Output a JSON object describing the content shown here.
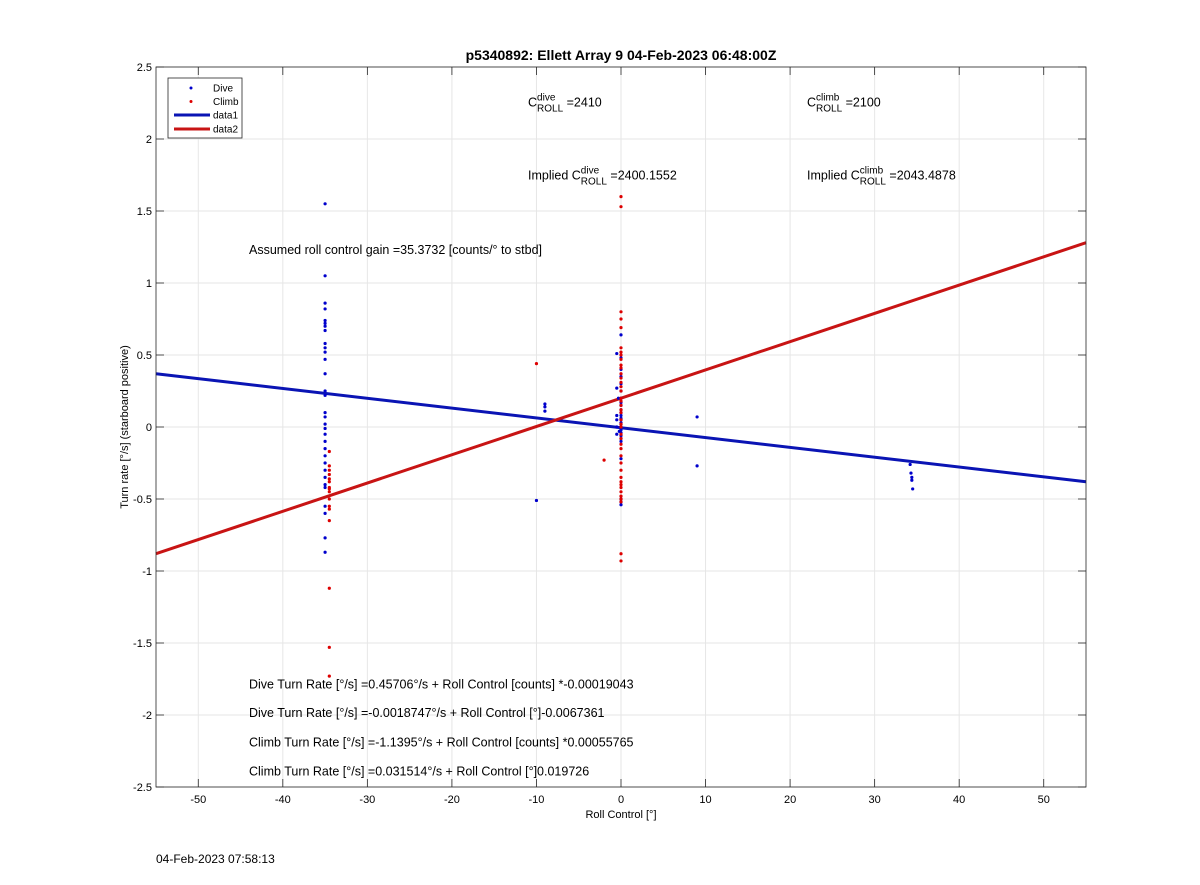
{
  "footer": {
    "timestamp": "04-Feb-2023 07:58:13"
  },
  "chart_data": {
    "type": "scatter",
    "title": "p5340892: Ellett Array 9 04-Feb-2023 06:48:00Z",
    "xlabel": "Roll Control [°]",
    "ylabel": "Turn rate [°/s] (starboard positive)",
    "xlim": [
      -55,
      55
    ],
    "ylim": [
      -2.5,
      2.5
    ],
    "xticks": [
      -50,
      -40,
      -30,
      -20,
      -10,
      0,
      10,
      20,
      30,
      40,
      50
    ],
    "yticks": [
      -2.5,
      -2,
      -1.5,
      -1,
      -0.5,
      0,
      0.5,
      1,
      1.5,
      2,
      2.5
    ],
    "grid": true,
    "legend_position": "top-left",
    "colors": {
      "dive": "#0000cc",
      "climb": "#dd0000",
      "data1": "#0a14b4",
      "data2": "#c81414"
    },
    "series": [
      {
        "name": "Dive",
        "kind": "points",
        "x": [
          -35,
          -35,
          -35,
          -35,
          -35,
          -35,
          -35,
          -35,
          -35,
          -35,
          -35,
          -35,
          -35,
          -35,
          -35,
          -35,
          -35,
          -35,
          -35,
          -35,
          -35,
          -35,
          -35,
          -35,
          -35,
          -35,
          -35,
          -35,
          -35,
          -35,
          -35,
          -35,
          -9,
          -9,
          -9,
          -10,
          -0.5,
          -0.5,
          -0.5,
          -0.5,
          -0.5,
          -0.5,
          -0.3,
          -0.2,
          0,
          0,
          0,
          0,
          0,
          0,
          0,
          0,
          0,
          0,
          0,
          0,
          0,
          0,
          0,
          0,
          0,
          0,
          0,
          0,
          0,
          0,
          0,
          0,
          0,
          0,
          9,
          9,
          34.2,
          34.3,
          34.4,
          34.4,
          34.5
        ],
        "y": [
          1.55,
          1.05,
          0.86,
          0.82,
          0.74,
          0.72,
          0.7,
          0.67,
          0.58,
          0.55,
          0.52,
          0.47,
          0.37,
          0.25,
          0.22,
          0.1,
          0.07,
          0.02,
          -0.01,
          -0.05,
          -0.1,
          -0.15,
          -0.2,
          -0.25,
          -0.3,
          -0.35,
          -0.4,
          -0.42,
          -0.55,
          -0.6,
          -0.77,
          -0.87,
          0.16,
          0.14,
          0.11,
          -0.51,
          0.51,
          0.27,
          0.08,
          0.05,
          0.0,
          -0.05,
          0.2,
          -0.03,
          0.64,
          0.48,
          0.4,
          0.35,
          0.3,
          0.25,
          0.2,
          0.17,
          0.15,
          0.12,
          0.1,
          0.08,
          0.06,
          0.05,
          0.03,
          0.02,
          0.0,
          -0.02,
          -0.04,
          -0.06,
          -0.08,
          -0.1,
          -0.22,
          -0.5,
          -0.52,
          -0.54,
          0.07,
          -0.27,
          -0.26,
          -0.32,
          -0.35,
          -0.37,
          -0.43
        ]
      },
      {
        "name": "Climb",
        "kind": "points",
        "x": [
          -34.5,
          -34.5,
          -34.5,
          -34.5,
          -34.5,
          -34.5,
          -34.5,
          -34.5,
          -34.5,
          -34.5,
          -34.5,
          -34.5,
          -34.5,
          -34.5,
          -34.5,
          -34.5,
          -10,
          -2,
          0,
          0,
          0,
          0,
          0,
          0,
          0,
          0,
          0,
          0,
          0,
          0,
          0,
          0,
          0,
          0,
          0,
          0,
          0,
          0,
          0,
          0,
          0,
          0,
          0,
          0,
          0,
          0,
          0,
          0,
          0,
          0,
          0,
          0,
          0,
          0,
          0,
          0,
          0,
          0,
          0
        ],
        "y": [
          -0.17,
          -0.27,
          -0.3,
          -0.33,
          -0.36,
          -0.38,
          -0.42,
          -0.43,
          -0.45,
          -0.5,
          -0.55,
          -0.57,
          -0.65,
          -1.12,
          -1.53,
          -1.73,
          0.44,
          -0.23,
          1.6,
          1.53,
          0.8,
          0.75,
          0.69,
          0.55,
          0.52,
          0.5,
          0.47,
          0.43,
          0.41,
          0.37,
          0.34,
          0.31,
          0.28,
          0.25,
          0.2,
          0.18,
          0.15,
          0.12,
          0.1,
          0.05,
          0.02,
          0.0,
          -0.05,
          -0.08,
          -0.12,
          -0.15,
          -0.2,
          -0.25,
          -0.3,
          -0.35,
          -0.38,
          -0.4,
          -0.42,
          -0.45,
          -0.48,
          -0.5,
          -0.52,
          -0.88,
          -0.93
        ]
      },
      {
        "name": "data1",
        "kind": "line",
        "x": [
          -55,
          55
        ],
        "y": [
          0.37,
          -0.38
        ]
      },
      {
        "name": "data2",
        "kind": "line",
        "x": [
          -55,
          55
        ],
        "y": [
          -0.88,
          1.28
        ]
      }
    ],
    "annotations": [
      {
        "id": "c-roll-dive",
        "prefix": "C",
        "sup": "dive",
        "sub": "ROLL",
        "value": " =2410",
        "x": -11,
        "y": 2.225
      },
      {
        "id": "c-roll-climb",
        "prefix": "C",
        "sup": "climb",
        "sub": "ROLL",
        "value": " =2100",
        "x": 22,
        "y": 2.225
      },
      {
        "id": "implied-dive",
        "prefix": "Implied C",
        "sup": "dive",
        "sub": "ROLL",
        "value": " =2400.1552",
        "x": -11,
        "y": 1.72
      },
      {
        "id": "implied-climb",
        "prefix": "Implied C",
        "sup": "climb",
        "sub": "ROLL",
        "value": " =2043.4878",
        "x": 22,
        "y": 1.72
      }
    ],
    "text_annotations": [
      {
        "id": "gain-note",
        "text": "Assumed roll control gain =35.3732 [counts/° to stbd]",
        "x": -44,
        "y": 1.2
      },
      {
        "id": "fit-1",
        "text": "Dive Turn Rate [°/s] =0.45706°/s + Roll Control [counts] *-0.00019043",
        "x": -44,
        "y": -1.815
      },
      {
        "id": "fit-2",
        "text": "Dive Turn Rate [°/s] =-0.0018747°/s + Roll Control [°]-0.0067361",
        "x": -44,
        "y": -2.015
      },
      {
        "id": "fit-3",
        "text": "Climb Turn Rate [°/s] =-1.1395°/s + Roll Control [counts] *0.00055765",
        "x": -44,
        "y": -2.22
      },
      {
        "id": "fit-4",
        "text": "Climb Turn Rate [°/s] =0.031514°/s + Roll Control [°]0.019726",
        "x": -44,
        "y": -2.42
      }
    ]
  }
}
